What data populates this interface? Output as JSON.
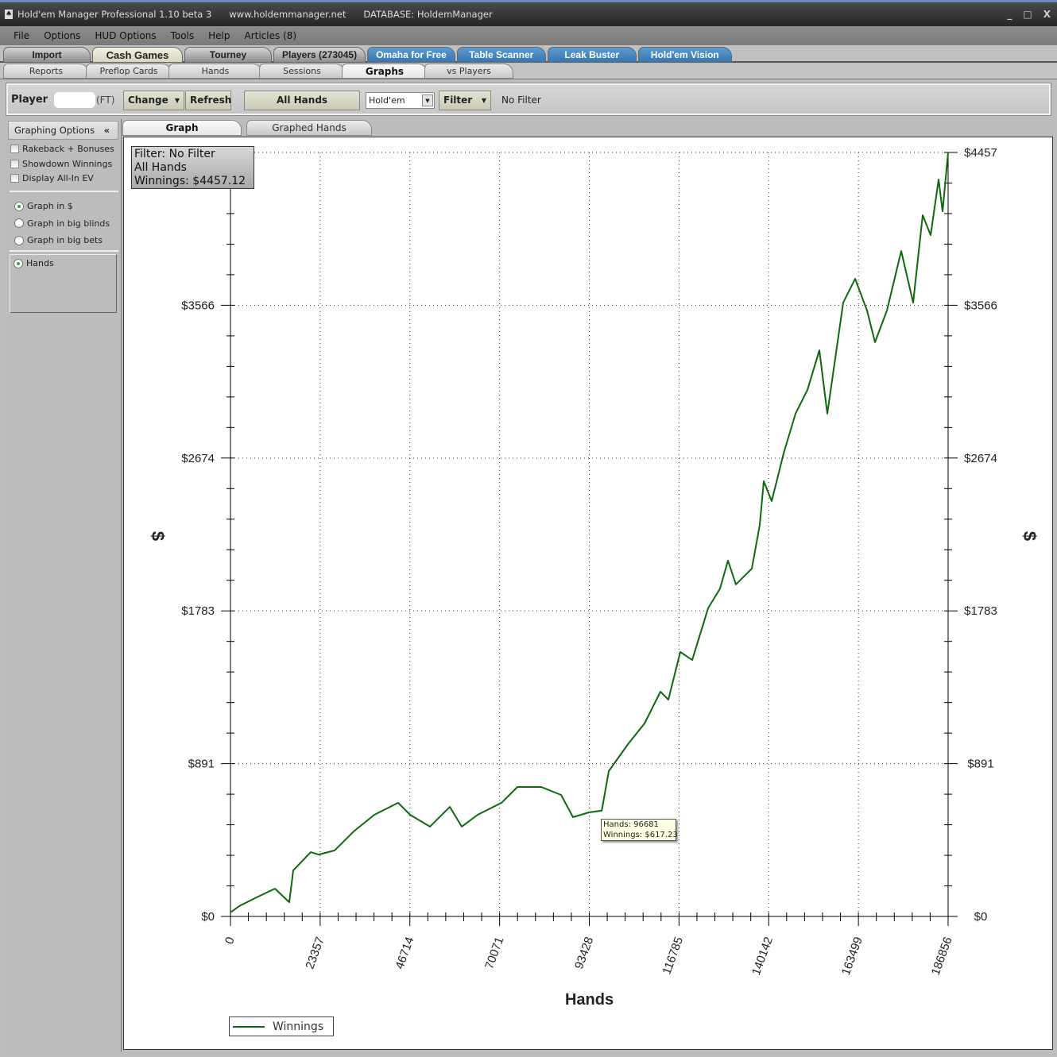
{
  "titlebar": {
    "app": "Hold'em Manager Professional 1.10 beta 3",
    "site": "www.holdemmanager.net",
    "database": "DATABASE: HoldemManager",
    "minimize": "_",
    "maximize": "□",
    "close": "X"
  },
  "menu": [
    "File",
    "Options",
    "HUD Options",
    "Tools",
    "Help",
    "Articles (8)"
  ],
  "main_tabs": [
    {
      "label": "Import"
    },
    {
      "label": "Cash Games",
      "active": true
    },
    {
      "label": "Tourney"
    },
    {
      "label": "Players (273045)"
    },
    {
      "label": "Omaha for Free",
      "style": "blue"
    },
    {
      "label": "Table Scanner",
      "style": "blue"
    },
    {
      "label": "Leak Buster",
      "style": "blue"
    },
    {
      "label": "Hold'em Vision",
      "style": "blue"
    }
  ],
  "sub_tabs": [
    {
      "label": "Reports"
    },
    {
      "label": "Preflop Cards"
    },
    {
      "label": "Hands"
    },
    {
      "label": "Sessions"
    },
    {
      "label": "Graphs",
      "active": true
    },
    {
      "label": "vs Players"
    }
  ],
  "toolbar": {
    "player_label": "Player",
    "player_site": "(FT)",
    "change": "Change",
    "refresh": "Refresh",
    "all_hands": "All Hands",
    "game_select": "Hold'em",
    "filter": "Filter",
    "filter_status": "No Filter"
  },
  "graphing_options": {
    "title": "Graphing Options",
    "collapse": "«",
    "checkboxes": [
      {
        "label": "Rakeback + Bonuses",
        "checked": false
      },
      {
        "label": "Showdown Winnings",
        "checked": false
      },
      {
        "label": "Display All-In EV",
        "checked": false
      }
    ],
    "units": [
      {
        "label": "Graph in $",
        "selected": true
      },
      {
        "label": "Graph in big blinds",
        "selected": false
      },
      {
        "label": "Graph in big bets",
        "selected": false
      }
    ],
    "xaxis_mode": [
      {
        "label": "Hands",
        "selected": true
      }
    ]
  },
  "chart_tabs": [
    {
      "label": "Graph",
      "active": true
    },
    {
      "label": "Graphed Hands"
    }
  ],
  "info": {
    "line1": "Filter: No Filter",
    "line2": "All Hands",
    "line3": "Winnings: $4457.12"
  },
  "tooltip": {
    "line1": "Hands: 96681",
    "line2": "Winnings: $617.23"
  },
  "chart_data": {
    "type": "line",
    "xlabel": "Hands",
    "ylabel": "$",
    "xlim": [
      0,
      186856
    ],
    "ylim": [
      0,
      4457
    ],
    "xticks": [
      0,
      23357,
      46714,
      70071,
      93428,
      116785,
      140142,
      163499,
      186856
    ],
    "yticks": [
      {
        "v": 0,
        "l": "$0"
      },
      {
        "v": 891,
        "l": "$891"
      },
      {
        "v": 1783,
        "l": "$1783"
      },
      {
        "v": 2674,
        "l": "$2674"
      },
      {
        "v": 3566,
        "l": "$3566"
      },
      {
        "v": 4457,
        "l": "$4457"
      }
    ],
    "grid": "dotted",
    "legend": "bottom-left",
    "series": [
      {
        "name": "Winnings",
        "color": "#0b6b0b",
        "x": [
          0,
          2276,
          6415,
          11588,
          15313,
          16348,
          20900,
          22969,
          27108,
          32281,
          37455,
          43662,
          46767,
          51940,
          57113,
          60217,
          64356,
          70564,
          74703,
          80911,
          86084,
          89188,
          93327,
          96681,
          98500,
          103673,
          107812,
          111951,
          114021,
          117125,
          120229,
          124368,
          127472,
          129541,
          131610,
          135749,
          137818,
          138852,
          140921,
          144025,
          147129,
          150233,
          153337,
          155406,
          159545,
          162649,
          165753,
          167822,
          170926,
          174651,
          177755,
          180238,
          182308,
          184377,
          185412,
          186856
        ],
        "y": [
          23,
          60,
          107,
          162,
          83,
          269,
          375,
          361,
          385,
          500,
          593,
          663,
          593,
          524,
          639,
          524,
          593,
          663,
          755,
          755,
          709,
          579,
          607,
          617,
          848,
          1010,
          1126,
          1311,
          1265,
          1543,
          1496,
          1798,
          1913,
          2076,
          1937,
          2029,
          2284,
          2539,
          2423,
          2701,
          2933,
          3072,
          3303,
          2933,
          3581,
          3720,
          3535,
          3350,
          3535,
          3882,
          3581,
          4091,
          3975,
          4299,
          4114,
          4457
        ]
      }
    ]
  }
}
